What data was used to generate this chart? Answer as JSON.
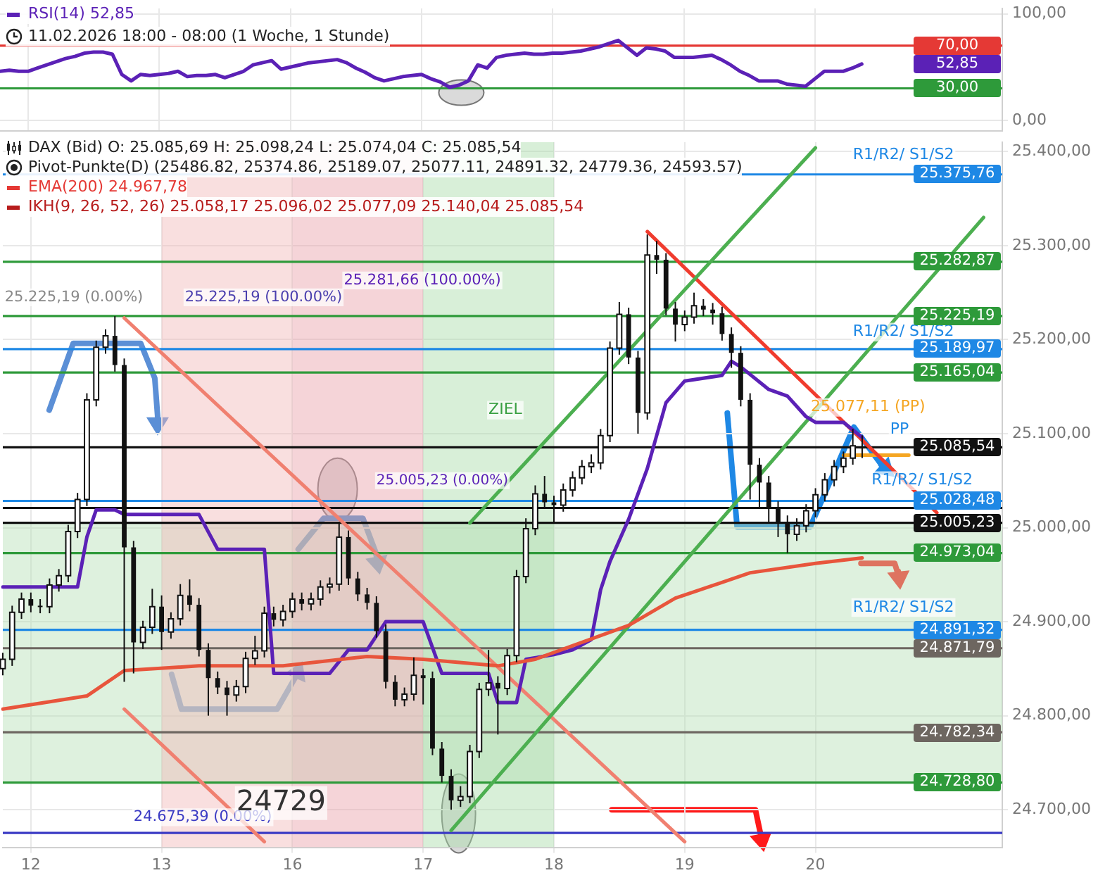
{
  "chart_data": [
    {
      "type": "line",
      "annotations": [
        "RSI(14)  52,85",
        "11.02.2026 18:00 - 08:00  (1 Woche, 1 Stunde)",
        "52,85"
      ],
      "categories": [
        null,
        null,
        null,
        null,
        null,
        null,
        null,
        null,
        null,
        null,
        null,
        null,
        null,
        null,
        null,
        null,
        null,
        null,
        null,
        null,
        null,
        null,
        null,
        null,
        null,
        null,
        null,
        null,
        null,
        null,
        null,
        null,
        null,
        null,
        null,
        null,
        null,
        null,
        null,
        null,
        null,
        null,
        null,
        null,
        null,
        null,
        null,
        null,
        null,
        null,
        null,
        null,
        null,
        null,
        null,
        null,
        null,
        null,
        null,
        null,
        null,
        null,
        null,
        null,
        null,
        null,
        null,
        null,
        null,
        null,
        null,
        null,
        null,
        null,
        null,
        null,
        null,
        null,
        null,
        null,
        null,
        null,
        null,
        null,
        null,
        null,
        null,
        null,
        null,
        null,
        null,
        null,
        null,
        null,
        null,
        null,
        null,
        null,
        null,
        null,
        null,
        null,
        null,
        null,
        null,
        null,
        null,
        null
      ],
      "series": [
        {
          "color": "#5b21b6",
          "values": [
            46,
            47,
            46,
            46,
            49,
            52,
            55,
            58,
            60,
            63,
            64,
            64,
            62,
            43,
            37,
            43,
            42,
            43,
            44,
            46,
            41,
            42,
            42,
            43,
            40,
            43,
            46,
            52,
            54,
            56,
            48,
            50,
            52,
            54,
            55,
            56,
            57,
            54,
            49,
            45,
            40,
            37,
            39,
            41,
            42,
            43,
            39,
            36,
            31,
            33,
            37,
            52,
            49,
            59,
            61,
            62,
            63,
            62,
            62,
            63,
            63,
            64,
            65,
            67,
            69,
            72,
            75,
            68,
            61,
            68,
            67,
            65,
            59,
            59,
            59,
            60,
            61,
            57,
            52,
            46,
            42,
            37,
            37,
            37,
            34,
            33,
            32,
            39,
            46,
            46,
            46,
            49,
            52.85,
            null,
            null,
            null,
            null,
            null,
            null,
            null,
            null,
            null,
            null,
            null,
            null,
            null,
            null,
            null
          ]
        }
      ],
      "ylim": [
        -10,
        105
      ],
      "yticks": [
        {
          "value": 0,
          "label": "0,00"
        },
        {
          "value": 100,
          "label": "100,00"
        }
      ],
      "ref_lines": [
        {
          "axis": "y",
          "value": 70,
          "label": "70,00",
          "color": "#e53935"
        },
        {
          "axis": "y",
          "value": 30,
          "label": "30,00",
          "color": "#2e9a3a"
        }
      ],
      "tick_labels": "y",
      "grid": true
    },
    {
      "type": "candlestick",
      "color": "#111111",
      "colors": [
        "#ffffff",
        "#ffffff",
        "#ffffff",
        "#111111",
        "#111111",
        "#ffffff",
        "#ffffff",
        "#ffffff",
        "#ffffff",
        "#ffffff",
        "#ffffff",
        "#ffffff",
        "#111111",
        "#111111",
        "#111111",
        "#ffffff",
        "#ffffff",
        "#111111",
        "#ffffff",
        "#ffffff",
        "#111111",
        "#111111",
        "#111111",
        "#111111",
        "#111111",
        "#ffffff",
        "#ffffff",
        "#ffffff",
        "#ffffff",
        "#111111",
        "#ffffff",
        "#ffffff",
        "#111111",
        "#ffffff",
        "#ffffff",
        "#ffffff",
        "#ffffff",
        "#111111",
        "#111111",
        "#111111",
        "#111111",
        "#111111",
        "#111111",
        "#ffffff",
        "#ffffff",
        "#111111",
        "#111111",
        "#111111",
        "#111111",
        "#ffffff",
        "#ffffff",
        "#ffffff",
        "#ffffff",
        "#111111",
        "#ffffff",
        "#ffffff",
        "#ffffff",
        "#ffffff",
        "#111111",
        "#111111",
        "#ffffff",
        "#ffffff",
        "#ffffff",
        "#ffffff",
        "#ffffff",
        "#ffffff",
        "#ffffff",
        "#111111",
        "#111111",
        "#ffffff",
        "#111111",
        "#111111",
        "#111111",
        "#ffffff",
        "#ffffff",
        "#111111",
        "#111111",
        "#111111",
        "#111111",
        "#111111",
        "#111111",
        "#111111",
        "#111111",
        "#111111",
        "#111111",
        "#ffffff",
        "#ffffff",
        "#ffffff",
        "#ffffff",
        "#ffffff",
        "#ffffff",
        "#ffffff",
        "#111111",
        null,
        null,
        null,
        null,
        null,
        null,
        null,
        null,
        null,
        null,
        null,
        null,
        null,
        null,
        null
      ],
      "annotations": [
        "DAX (Bid)  O: 25.085,69  H: 25.098,24  L: 25.074,04  C: 25.085,54",
        "Pivot-Punkte(D)  (25486.82,  25374.86,  25189.07,  25077.11,  24891.32,  24779.36,  24593.57)",
        "EMA(200)  24.967,78",
        "IKH(9, 26, 52, 26)  25.058,17  25.096,02  25.077,09  25.140,04  25.085,54",
        "25.225,19 (0.00%)",
        "25.225,19 (100.00%)",
        "25.281,66 (100.00%)",
        "ZIEL",
        "25.005,23 (0.00%)",
        "24.675,39 (0.00%)",
        "24729",
        "R1/R2/ S1/S2",
        "R1/R2/ S1/S2",
        "R1/R2/ S1/S2",
        "R1/R2/ S1/S2",
        "25.077,11 (PP)",
        "PP"
      ],
      "categories": [
        null,
        null,
        null,
        "12",
        null,
        null,
        null,
        null,
        null,
        null,
        null,
        null,
        null,
        null,
        null,
        null,
        null,
        "13",
        null,
        null,
        null,
        null,
        null,
        null,
        null,
        null,
        null,
        null,
        null,
        null,
        null,
        "16",
        null,
        null,
        null,
        null,
        null,
        null,
        null,
        null,
        null,
        null,
        null,
        null,
        null,
        "17",
        null,
        null,
        null,
        null,
        null,
        null,
        null,
        null,
        null,
        null,
        null,
        null,
        null,
        "18",
        null,
        null,
        null,
        null,
        null,
        null,
        null,
        null,
        null,
        null,
        null,
        null,
        null,
        "19",
        null,
        null,
        null,
        null,
        null,
        null,
        null,
        null,
        null,
        null,
        null,
        null,
        null,
        "20",
        null,
        null,
        null,
        null,
        null,
        null,
        null,
        null,
        null,
        null,
        null,
        null,
        null,
        null,
        null,
        null,
        null,
        null,
        null,
        null
      ],
      "ohlc": [
        [
          24850,
          24867,
          24843,
          24860
        ],
        [
          24860,
          24917,
          24853,
          24910
        ],
        [
          24910,
          24931,
          24903,
          24924
        ],
        [
          24924,
          24931,
          24910,
          24917
        ],
        [
          24917,
          24924,
          24909,
          24916
        ],
        [
          24916,
          24946,
          24909,
          24939
        ],
        [
          24939,
          24956,
          24932,
          24949
        ],
        [
          24949,
          25003,
          24942,
          24996
        ],
        [
          24996,
          25037,
          24989,
          25030
        ],
        [
          25030,
          25143,
          25023,
          25136
        ],
        [
          25136,
          25199,
          25129,
          25192
        ],
        [
          25192,
          25211,
          25185,
          25204
        ],
        [
          25204,
          25225,
          25166,
          25173
        ],
        [
          25173,
          25180,
          24836,
          24979
        ],
        [
          24979,
          24986,
          24845,
          24878
        ],
        [
          24878,
          24901,
          24871,
          24894
        ],
        [
          24894,
          24935,
          24887,
          24916
        ],
        [
          24916,
          24928,
          24870,
          24889
        ],
        [
          24889,
          24910,
          24882,
          24903
        ],
        [
          24903,
          24940,
          24896,
          24928
        ],
        [
          24928,
          24945,
          24911,
          24918
        ],
        [
          24918,
          24925,
          24863,
          24870
        ],
        [
          24870,
          24877,
          24800,
          24840
        ],
        [
          24840,
          24847,
          24823,
          24830
        ],
        [
          24830,
          24837,
          24800,
          24822
        ],
        [
          24822,
          24838,
          24815,
          24831
        ],
        [
          24831,
          24868,
          24824,
          24861
        ],
        [
          24861,
          24885,
          24854,
          24869
        ],
        [
          24869,
          24916,
          24862,
          24909
        ],
        [
          24909,
          24916,
          24895,
          24902
        ],
        [
          24902,
          24918,
          24895,
          24911
        ],
        [
          24911,
          24931,
          24904,
          24924
        ],
        [
          24924,
          24931,
          24912,
          24919
        ],
        [
          24919,
          24931,
          24912,
          24924
        ],
        [
          24924,
          24944,
          24917,
          24937
        ],
        [
          24937,
          24947,
          24930,
          24940
        ],
        [
          24940,
          25005,
          24933,
          24990
        ],
        [
          24990,
          24997,
          24939,
          24946
        ],
        [
          24946,
          24953,
          24922,
          24929
        ],
        [
          24929,
          24936,
          24913,
          24920
        ],
        [
          24920,
          24927,
          24883,
          24890
        ],
        [
          24890,
          24897,
          24829,
          24836
        ],
        [
          24836,
          24843,
          24810,
          24817
        ],
        [
          24817,
          24830,
          24810,
          24823
        ],
        [
          24823,
          24862,
          24816,
          24843
        ],
        [
          24843,
          24850,
          24812,
          24840
        ],
        [
          24840,
          24847,
          24758,
          24765
        ],
        [
          24765,
          24772,
          24729,
          24736
        ],
        [
          24736,
          24743,
          24700,
          24710
        ],
        [
          24710,
          24725,
          24703,
          24714
        ],
        [
          24714,
          24769,
          24707,
          24762
        ],
        [
          24762,
          24835,
          24755,
          24828
        ],
        [
          24828,
          24870,
          24821,
          24835
        ],
        [
          24835,
          24842,
          24780,
          24829
        ],
        [
          24829,
          24871,
          24822,
          24864
        ],
        [
          24864,
          24955,
          24857,
          24948
        ],
        [
          24948,
          25010,
          24941,
          24999
        ],
        [
          24999,
          25045,
          24992,
          25036
        ],
        [
          25036,
          25055,
          25020,
          25027
        ],
        [
          25027,
          25034,
          25005,
          25024
        ],
        [
          25024,
          25047,
          25017,
          25040
        ],
        [
          25040,
          25060,
          25033,
          25053
        ],
        [
          25053,
          25072,
          25046,
          25065
        ],
        [
          25065,
          25078,
          25058,
          25069
        ],
        [
          25069,
          25105,
          25062,
          25098
        ],
        [
          25098,
          25198,
          25091,
          25191
        ],
        [
          25191,
          25240,
          25184,
          25227
        ],
        [
          25227,
          25234,
          25174,
          25181
        ],
        [
          25181,
          25188,
          25100,
          25122
        ],
        [
          25122,
          25312,
          25115,
          25290
        ],
        [
          25290,
          25305,
          25270,
          25285
        ],
        [
          25285,
          25292,
          25226,
          25233
        ],
        [
          25233,
          25240,
          25198,
          25216
        ],
        [
          25216,
          25231,
          25209,
          25224
        ],
        [
          25224,
          25250,
          25217,
          25236
        ],
        [
          25236,
          25243,
          25225,
          25232
        ],
        [
          25232,
          25239,
          25216,
          25228
        ],
        [
          25228,
          25235,
          25199,
          25206
        ],
        [
          25206,
          25213,
          25170,
          25186
        ],
        [
          25186,
          25193,
          25129,
          25136
        ],
        [
          25136,
          25143,
          25030,
          25067
        ],
        [
          25067,
          25074,
          25020,
          25048
        ],
        [
          25048,
          25055,
          25005,
          25021
        ],
        [
          25021,
          25028,
          24990,
          25006
        ],
        [
          25006,
          25013,
          24973,
          24993
        ],
        [
          24993,
          25010,
          24986,
          25002
        ],
        [
          25002,
          25025,
          24995,
          25018
        ],
        [
          25018,
          25042,
          25011,
          25035
        ],
        [
          25035,
          25058,
          25028,
          25051
        ],
        [
          25051,
          25072,
          25044,
          25065
        ],
        [
          25065,
          25081,
          25058,
          25074
        ],
        [
          25074,
          25105,
          25067,
          25087
        ],
        [
          25085.69,
          25098.24,
          25074.04,
          25085.54
        ],
        null,
        null,
        null,
        null,
        null,
        null,
        null,
        null,
        null,
        null,
        null,
        null,
        null,
        null,
        null
      ],
      "series": [
        {
          "type": "line",
          "color": "#e8553c",
          "values": [
            24807,
            null,
            null,
            null,
            null,
            null,
            null,
            null,
            null,
            24821,
            null,
            null,
            null,
            24848,
            null,
            null,
            null,
            null,
            null,
            null,
            null,
            24853,
            null,
            null,
            null,
            null,
            null,
            null,
            null,
            null,
            24853,
            null,
            null,
            null,
            null,
            null,
            null,
            null,
            null,
            24863,
            null,
            null,
            null,
            null,
            null,
            24860,
            null,
            null,
            null,
            null,
            null,
            null,
            null,
            24853,
            null,
            null,
            null,
            24860,
            null,
            null,
            null,
            null,
            null,
            null,
            null,
            null,
            null,
            24896,
            null,
            null,
            null,
            null,
            24925,
            null,
            null,
            null,
            null,
            null,
            null,
            null,
            24952,
            null,
            null,
            null,
            null,
            null,
            null,
            24962,
            null,
            null,
            null,
            null,
            24967.78,
            null,
            null,
            null,
            null,
            null,
            null,
            null,
            null,
            null,
            null,
            null,
            null,
            null,
            null,
            null
          ]
        },
        {
          "type": "line",
          "color": "#5b21b6",
          "values": [
            24937,
            null,
            null,
            null,
            null,
            null,
            null,
            null,
            24937,
            24990,
            25019,
            null,
            25019,
            25014,
            null,
            null,
            null,
            null,
            null,
            null,
            null,
            25014,
            null,
            24977,
            null,
            null,
            null,
            null,
            24977,
            24845,
            null,
            null,
            null,
            null,
            null,
            24845,
            null,
            24870,
            null,
            24870,
            null,
            24900,
            null,
            null,
            null,
            24900,
            null,
            24845,
            null,
            null,
            null,
            null,
            24845,
            24814,
            null,
            24814,
            24860,
            null,
            null,
            24865,
            null,
            24870,
            null,
            24881,
            24934,
            24964,
            null,
            25009,
            null,
            25063,
            null,
            25133,
            null,
            25156,
            null,
            null,
            null,
            25162,
            25177,
            25171,
            null,
            null,
            25147,
            null,
            25140,
            null,
            25118,
            25112,
            null,
            null,
            25112,
            null,
            25096.02,
            null,
            null,
            null,
            null,
            null,
            null,
            null,
            null,
            null,
            null,
            null,
            null,
            null,
            null,
            null
          ]
        },
        {
          "type": "line",
          "color": "#4caf50",
          "values": [
            null,
            null,
            null,
            null,
            null,
            null,
            null,
            null,
            null,
            null,
            null,
            null,
            null,
            null,
            null,
            null,
            null,
            null,
            null,
            null,
            null,
            null,
            null,
            null,
            null,
            null,
            null,
            null,
            null,
            null,
            null,
            null,
            null,
            null,
            null,
            null,
            null,
            null,
            null,
            null,
            null,
            null,
            null,
            null,
            null,
            null,
            null,
            null,
            null,
            null,
            25005,
            null,
            null,
            null,
            null,
            null,
            null,
            null,
            null,
            null,
            null,
            null,
            null,
            null,
            null,
            null,
            null,
            null,
            null,
            null,
            null,
            null,
            null,
            null,
            null,
            null,
            null,
            null,
            null,
            null,
            null,
            null,
            null,
            null,
            null,
            null,
            null,
            25404,
            null,
            null,
            null,
            null,
            null,
            null,
            null,
            null,
            null,
            null,
            null,
            null,
            null,
            null,
            null,
            null,
            null,
            null,
            null,
            null
          ]
        },
        {
          "type": "line",
          "color": "#4caf50",
          "values": [
            null,
            null,
            null,
            null,
            null,
            null,
            null,
            null,
            null,
            null,
            null,
            null,
            null,
            null,
            null,
            null,
            null,
            null,
            null,
            null,
            null,
            null,
            null,
            null,
            null,
            null,
            null,
            null,
            null,
            null,
            null,
            null,
            null,
            null,
            null,
            null,
            null,
            null,
            null,
            null,
            null,
            null,
            null,
            null,
            null,
            null,
            null,
            null,
            24678,
            null,
            null,
            null,
            null,
            null,
            null,
            null,
            null,
            null,
            null,
            null,
            null,
            null,
            null,
            null,
            null,
            null,
            null,
            null,
            null,
            null,
            null,
            null,
            null,
            null,
            null,
            null,
            null,
            null,
            null,
            null,
            null,
            null,
            null,
            null,
            null,
            null,
            null,
            null,
            null,
            null,
            null,
            null,
            null,
            null,
            null,
            null,
            null,
            null,
            null,
            null,
            null,
            null,
            null,
            null,
            null,
            25330,
            null,
            null
          ]
        },
        {
          "type": "line",
          "color": "#f03c2e",
          "values": [
            null,
            null,
            null,
            null,
            null,
            null,
            null,
            null,
            null,
            null,
            null,
            null,
            null,
            null,
            null,
            null,
            null,
            null,
            null,
            null,
            null,
            null,
            null,
            null,
            null,
            null,
            null,
            null,
            null,
            null,
            null,
            null,
            null,
            null,
            null,
            null,
            null,
            null,
            null,
            null,
            null,
            null,
            null,
            null,
            null,
            null,
            null,
            null,
            null,
            null,
            null,
            null,
            null,
            null,
            null,
            null,
            null,
            null,
            null,
            null,
            null,
            null,
            null,
            null,
            null,
            null,
            null,
            null,
            null,
            25315,
            null,
            null,
            null,
            null,
            null,
            null,
            null,
            null,
            null,
            null,
            null,
            null,
            null,
            null,
            null,
            null,
            null,
            null,
            null,
            null,
            null,
            null,
            null,
            null,
            null,
            null,
            null,
            null,
            null,
            null,
            25016,
            null,
            null,
            null,
            null,
            null,
            null,
            null
          ]
        },
        {
          "type": "line",
          "color": "#f08070",
          "values": [
            null,
            null,
            null,
            null,
            null,
            null,
            null,
            null,
            null,
            null,
            null,
            null,
            null,
            25223,
            null,
            null,
            null,
            null,
            null,
            null,
            null,
            null,
            null,
            null,
            null,
            null,
            null,
            null,
            null,
            null,
            null,
            null,
            null,
            null,
            null,
            null,
            null,
            null,
            null,
            null,
            null,
            null,
            null,
            null,
            null,
            null,
            null,
            null,
            null,
            null,
            null,
            null,
            null,
            null,
            null,
            null,
            null,
            null,
            null,
            null,
            null,
            null,
            null,
            null,
            null,
            null,
            null,
            null,
            null,
            null,
            null,
            null,
            null,
            24666,
            null,
            null,
            null,
            null,
            null,
            null,
            null,
            null,
            null,
            null,
            null,
            null,
            null,
            null,
            null,
            null,
            null,
            null,
            null,
            null,
            null,
            null,
            null,
            null,
            null,
            null,
            null,
            null,
            null,
            null,
            null,
            null,
            null,
            null
          ]
        },
        {
          "type": "line",
          "color": "#f08070",
          "values": [
            null,
            null,
            null,
            null,
            null,
            null,
            null,
            null,
            null,
            null,
            null,
            null,
            null,
            24807,
            null,
            null,
            null,
            null,
            null,
            null,
            null,
            null,
            null,
            null,
            null,
            null,
            null,
            null,
            24666,
            null,
            null,
            null,
            null,
            null,
            null,
            null,
            null,
            null,
            null,
            null,
            null,
            null,
            null,
            null,
            null,
            null,
            null,
            null,
            null,
            null,
            null,
            null,
            null,
            null,
            null,
            null,
            null,
            null,
            null,
            null,
            null,
            null,
            null,
            null,
            null,
            null,
            null,
            null,
            null,
            null,
            null,
            null,
            null,
            null,
            null,
            null,
            null,
            null,
            null,
            null,
            null,
            null,
            null,
            null,
            null,
            null,
            null,
            null,
            null,
            null,
            null,
            null,
            null,
            null,
            null,
            null,
            null,
            null,
            null,
            null,
            null,
            null,
            null,
            null,
            null,
            null,
            null,
            null
          ]
        },
        {
          "type": "line",
          "color": "#f5a623",
          "values": [
            null,
            null,
            null,
            null,
            null,
            null,
            null,
            null,
            null,
            null,
            null,
            null,
            null,
            null,
            null,
            null,
            null,
            null,
            null,
            null,
            null,
            null,
            null,
            null,
            null,
            null,
            null,
            null,
            null,
            null,
            null,
            null,
            null,
            null,
            null,
            null,
            null,
            null,
            null,
            null,
            null,
            null,
            null,
            null,
            null,
            null,
            null,
            null,
            null,
            null,
            null,
            null,
            null,
            null,
            null,
            null,
            null,
            null,
            null,
            null,
            null,
            null,
            null,
            null,
            null,
            null,
            null,
            null,
            null,
            null,
            null,
            null,
            null,
            null,
            null,
            null,
            null,
            null,
            null,
            null,
            null,
            null,
            null,
            null,
            null,
            null,
            null,
            null,
            null,
            null,
            25077.11,
            null,
            null,
            null,
            null,
            null,
            null,
            25077.11,
            null,
            null,
            null,
            null,
            null,
            null,
            null,
            null,
            null,
            null
          ]
        }
      ],
      "ylim": [
        24660,
        25410
      ],
      "yticks": [
        {
          "value": 24700,
          "label": "24.700,00"
        },
        {
          "value": 24800,
          "label": "24.800,00"
        },
        {
          "value": 24900,
          "label": "24.900,00"
        },
        {
          "value": 25000,
          "label": "25.000,00"
        },
        {
          "value": 25100,
          "label": "25.100,00"
        },
        {
          "value": 25200,
          "label": "25.200,00"
        },
        {
          "value": 25300,
          "label": "25.300,00"
        },
        {
          "value": 25400,
          "label": "25.400,00"
        }
      ],
      "ref_lines": [
        {
          "axis": "y",
          "value": 25375.76,
          "label": "25.375,76",
          "color": "#1e88e5"
        },
        {
          "axis": "y",
          "value": 25282.87,
          "label": "25.282,87",
          "color": "#2e9a3a"
        },
        {
          "axis": "y",
          "value": 25225.19,
          "label": "25.225,19",
          "color": "#2e9a3a"
        },
        {
          "axis": "y",
          "value": 25189.97,
          "label": "25.189,97",
          "color": "#1e88e5"
        },
        {
          "axis": "y",
          "value": 25165.04,
          "label": "25.165,04",
          "color": "#2e9a3a"
        },
        {
          "axis": "y",
          "value": 25085.54,
          "label": "25.085,54",
          "color": "#111111"
        },
        {
          "axis": "y",
          "value": 25028.48,
          "label": "25.028,48",
          "color": "#1e88e5"
        },
        {
          "axis": "y",
          "value": 25021,
          "color": "#111111"
        },
        {
          "axis": "y",
          "value": 25005.23,
          "label": "25.005,23",
          "color": "#111111"
        },
        {
          "axis": "y",
          "value": 24973.04,
          "label": "24.973,04",
          "color": "#2e9a3a"
        },
        {
          "axis": "y",
          "value": 24891.32,
          "label": "24.891,32",
          "color": "#1e88e5"
        },
        {
          "axis": "y",
          "value": 24871.79,
          "label": "24.871,79",
          "color": "#6d6660"
        },
        {
          "axis": "y",
          "value": 24782.34,
          "label": "24.782,34",
          "color": "#6d6660"
        },
        {
          "axis": "y",
          "value": 24728.8,
          "label": "24.728,80",
          "color": "#2e9a3a"
        },
        {
          "axis": "y",
          "value": 24675.39,
          "color": "#3b3bc4"
        }
      ],
      "bands": [
        {
          "axis": "y",
          "from": 24728.8,
          "to": 25005.23,
          "color": "#b5e0b5"
        },
        {
          "axis": "x",
          "from": "13",
          "to": "16",
          "color": "#f2b8b8"
        },
        {
          "axis": "x",
          "from": "16",
          "to": "17",
          "color": "#e9a0a8"
        },
        {
          "axis": "x",
          "from": "17",
          "to": "18",
          "color": "#a8dca8"
        }
      ],
      "grid": true
    }
  ]
}
